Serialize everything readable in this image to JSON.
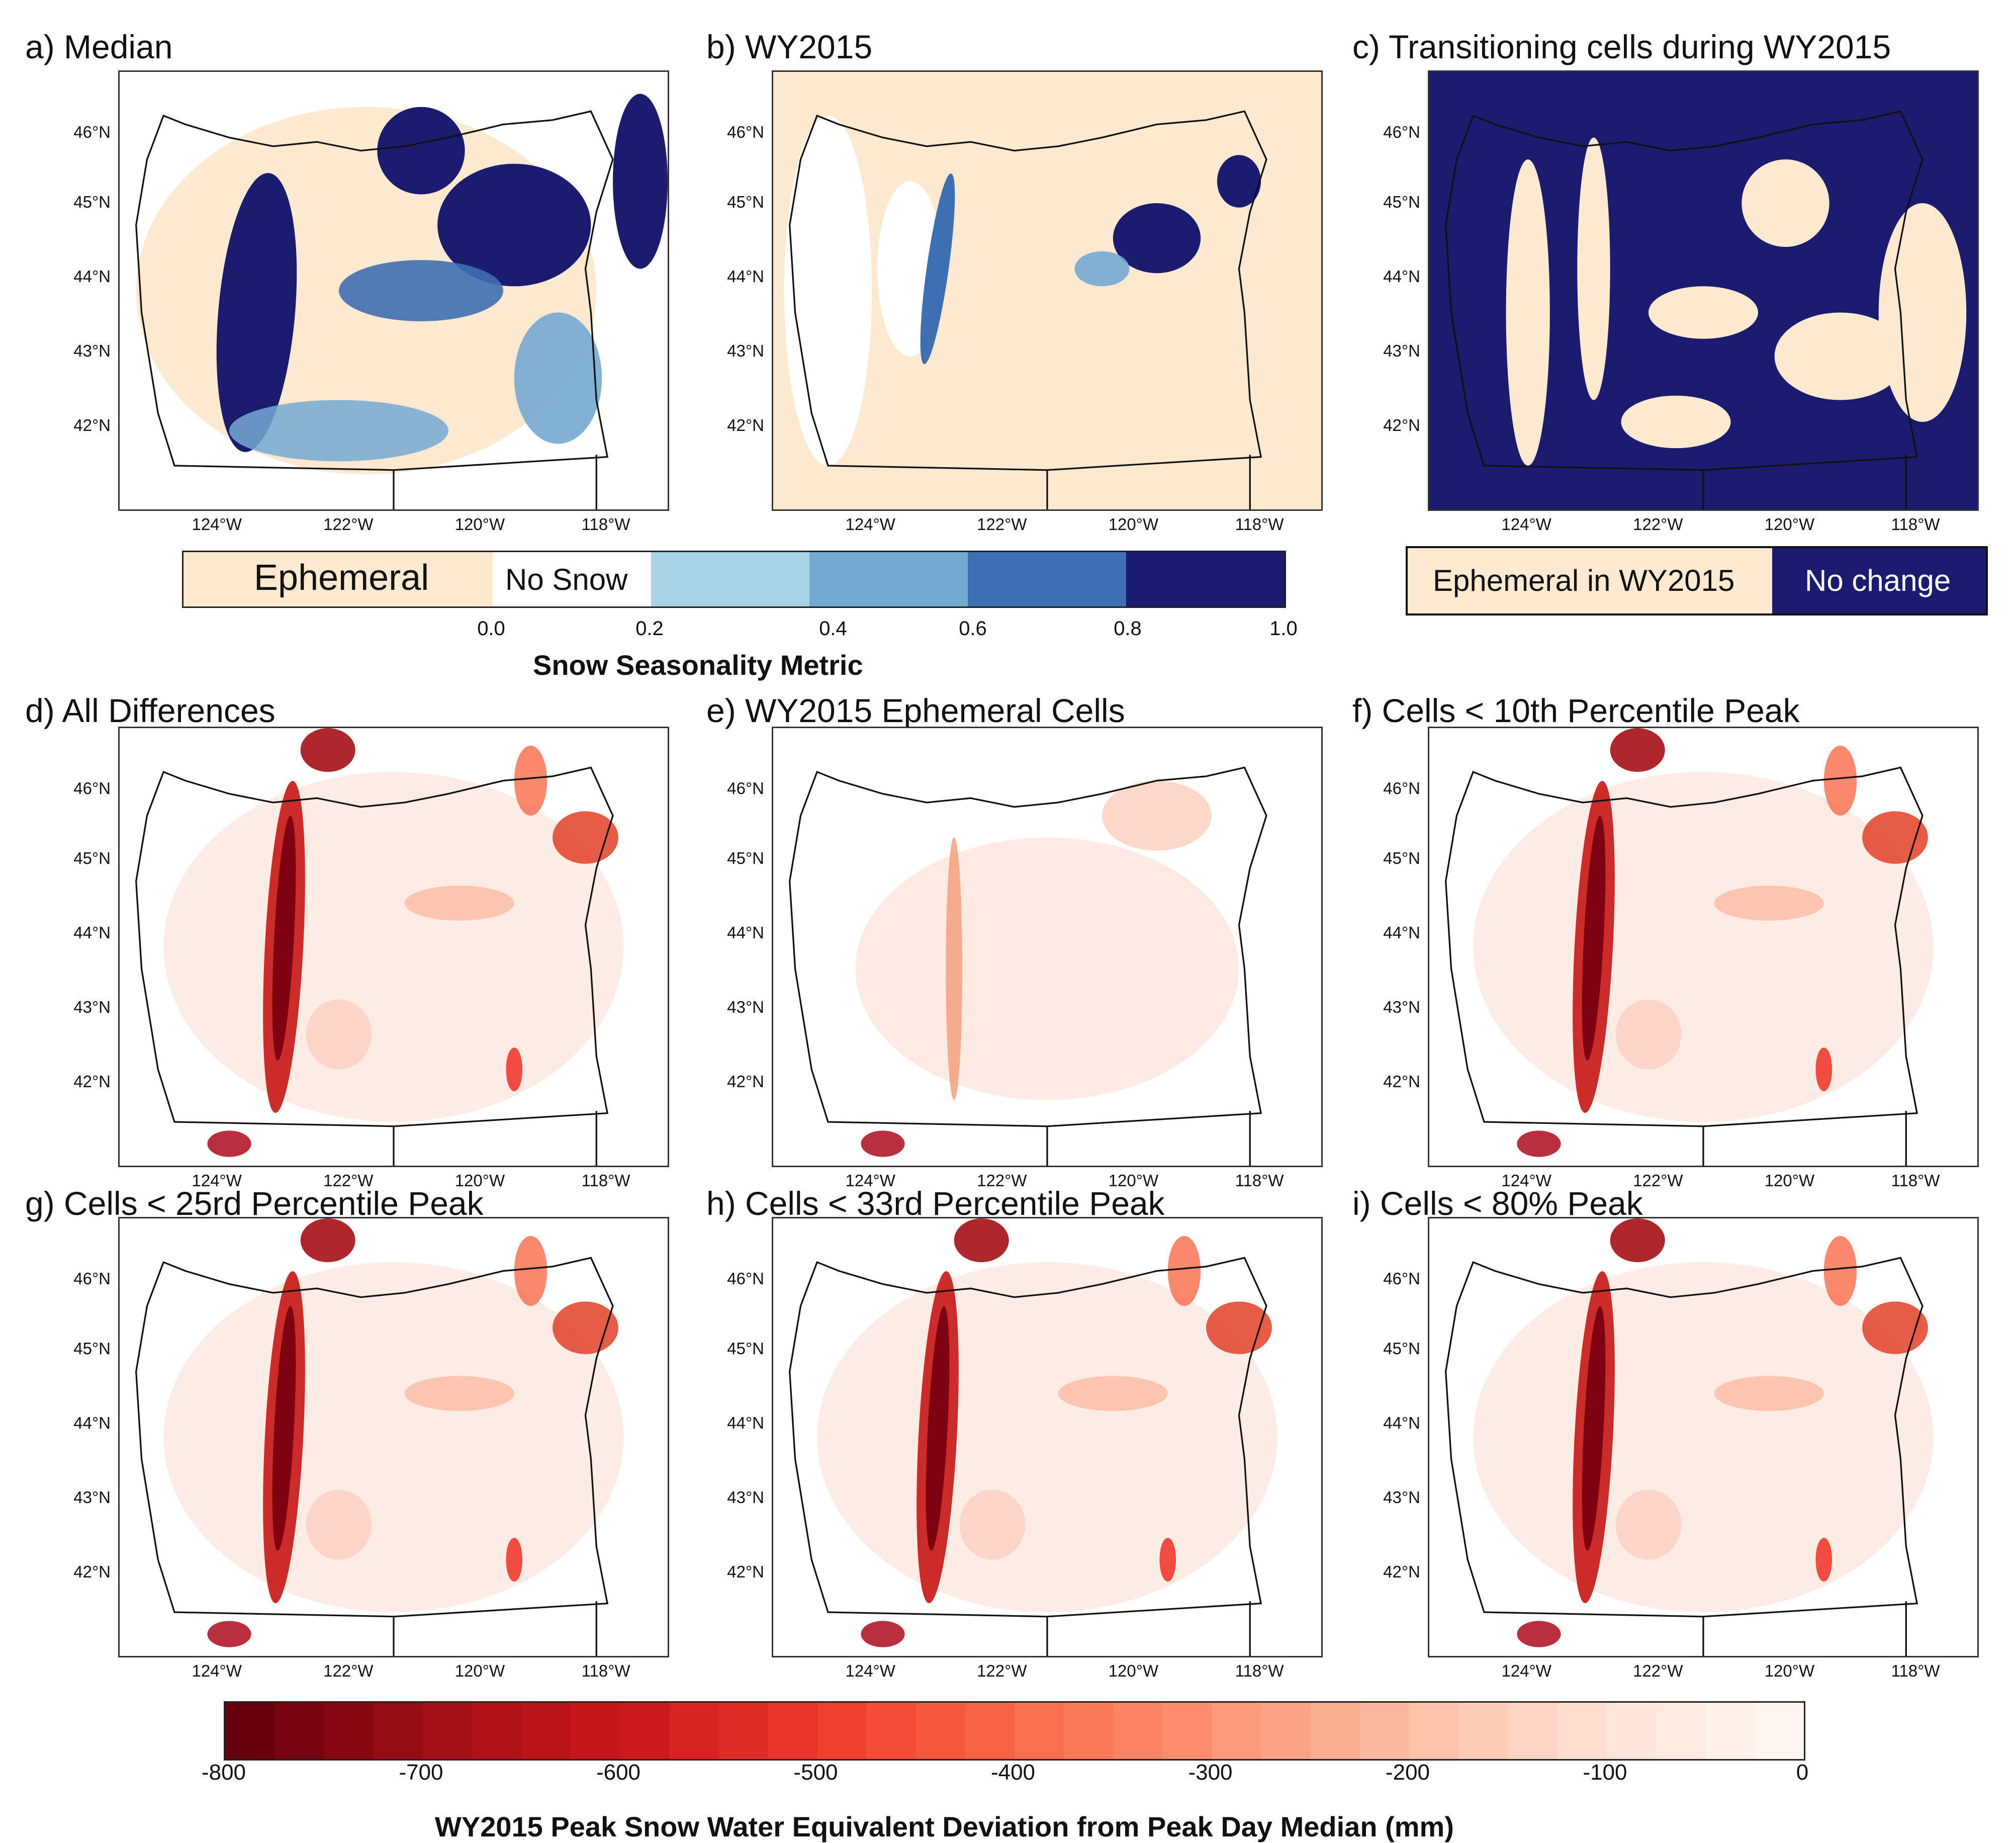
{
  "panels": [
    {
      "title": "a) Median",
      "variant": "seasonality"
    },
    {
      "title": "b) WY2015",
      "variant": "seasonality-wy"
    },
    {
      "title": "c) Transitioning cells during WY2015",
      "variant": "transition"
    },
    {
      "title": "d) All Differences",
      "variant": "swe-full"
    },
    {
      "title": "e) WY2015 Ephemeral Cells",
      "variant": "swe-light"
    },
    {
      "title": "f) Cells < 10th Percentile Peak",
      "variant": "swe-full"
    },
    {
      "title": "g) Cells < 25rd Percentile Peak",
      "variant": "swe-full"
    },
    {
      "title": "h) Cells < 33rd Percentile Peak",
      "variant": "swe-full"
    },
    {
      "title": "i) Cells < 80% Peak",
      "variant": "swe-full"
    }
  ],
  "lat_labels": [
    "46°N",
    "45°N",
    "44°N",
    "43°N",
    "42°N"
  ],
  "lon_labels": [
    "124°W",
    "122°W",
    "120°W",
    "118°W"
  ],
  "seasonality_colorbar": {
    "ephemeral_label": "Ephemeral",
    "nosnow_label": "No Snow",
    "ticks": [
      "0.0",
      "0.2",
      "0.4",
      "0.6",
      "0.8",
      "1.0"
    ],
    "title": "Snow Seasonality Metric",
    "colors": [
      "#fde9cf",
      "#ffffff",
      "#a8d4e8",
      "#74a9d2",
      "#3f6fb3",
      "#1b1b70"
    ]
  },
  "transition_legend": {
    "ephemeral_label": "Ephemeral in WY2015",
    "nochange_label": "No change",
    "colors": [
      "#fde9cf",
      "#1b1b70"
    ]
  },
  "swe_colorbar": {
    "ticks": [
      "-800",
      "-700",
      "-600",
      "-500",
      "-400",
      "-300",
      "-200",
      "-100",
      "0"
    ],
    "title": "WY2015 Peak Snow Water Equivalent Deviation from Peak Day Median (mm)",
    "range": [
      -800,
      0
    ],
    "n_bins": 32
  }
}
